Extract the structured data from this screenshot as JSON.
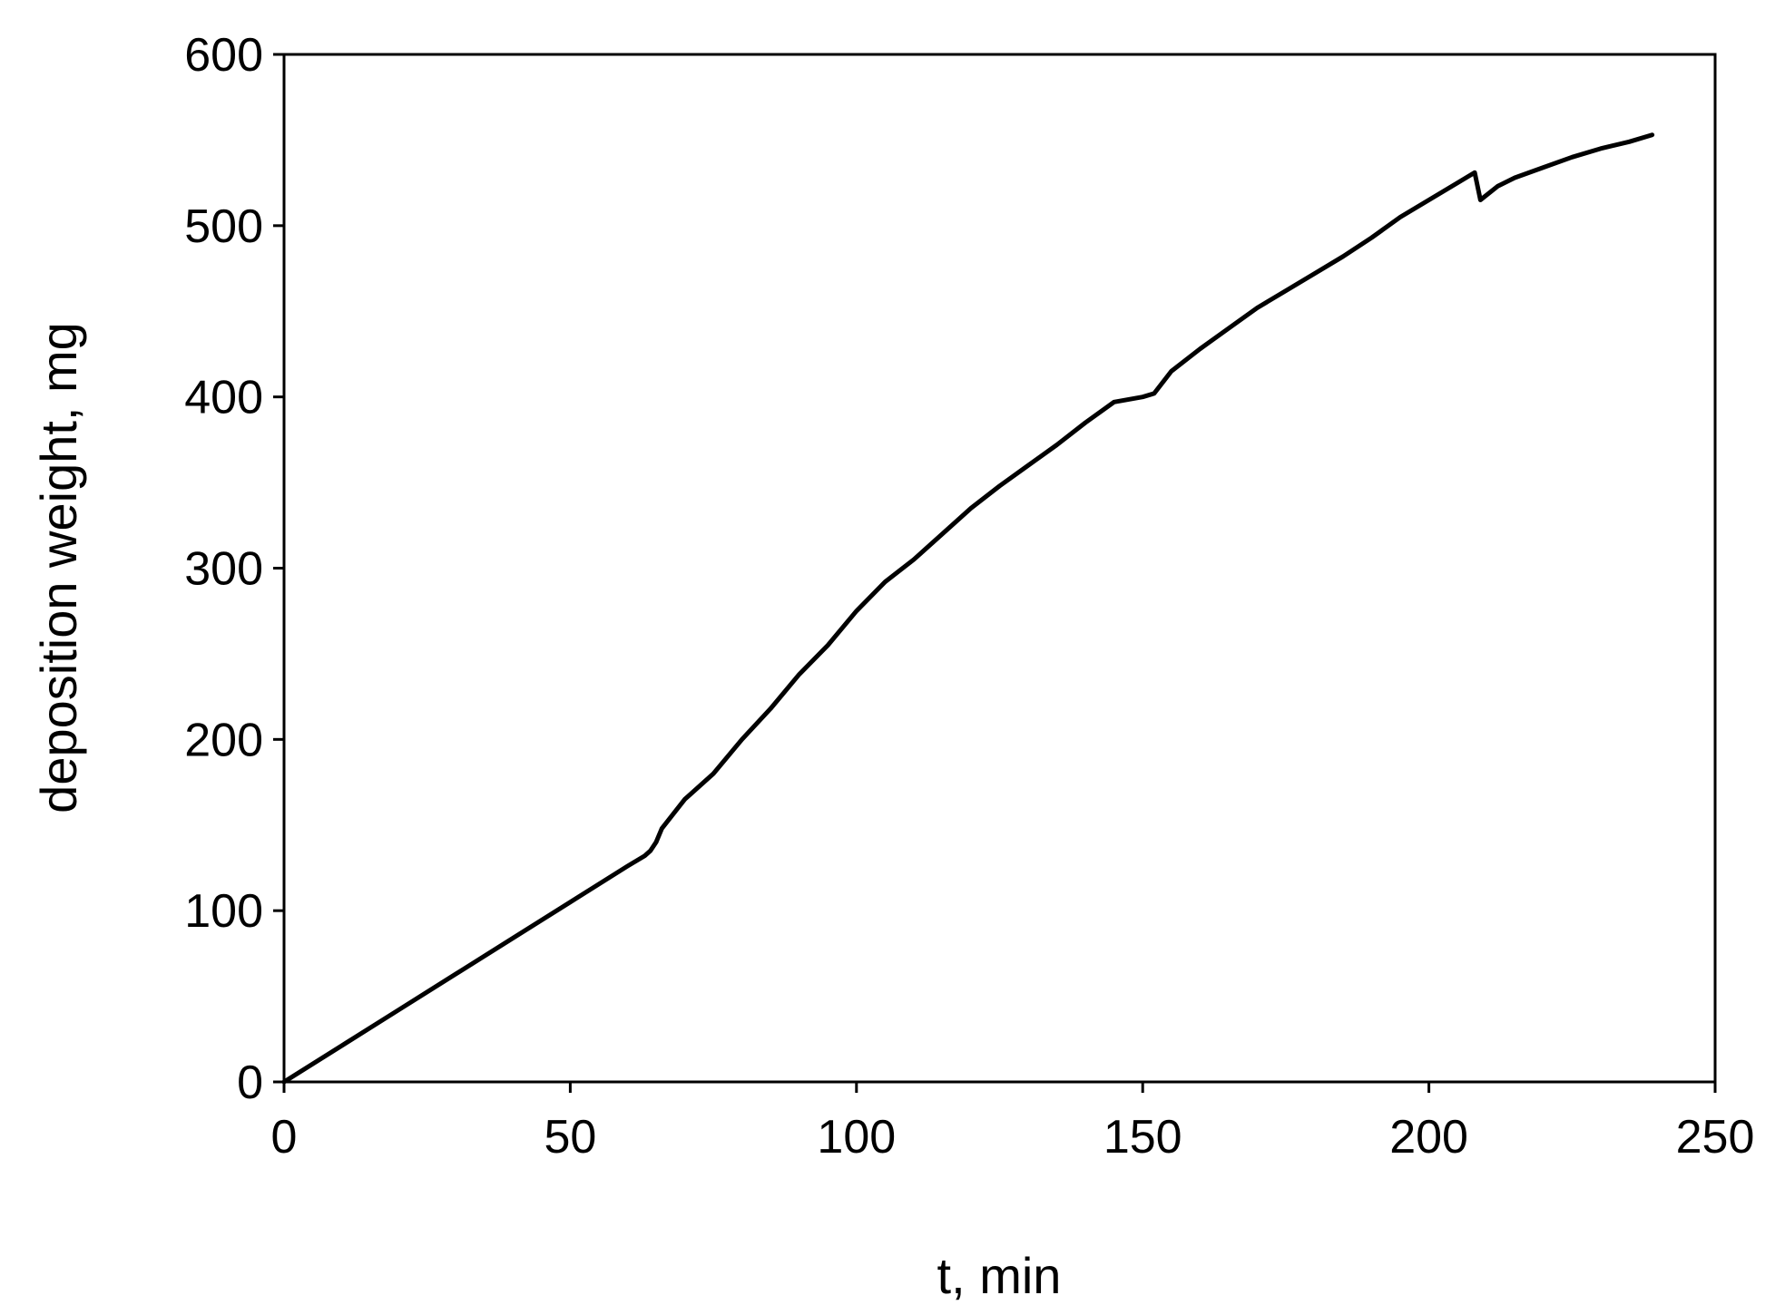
{
  "chart_data": {
    "type": "line",
    "title": "",
    "xlabel": "t, min",
    "ylabel": "deposition weight, mg",
    "xlim": [
      0,
      250
    ],
    "ylim": [
      0,
      600
    ],
    "xticks": [
      0,
      50,
      100,
      150,
      200,
      250
    ],
    "yticks": [
      0,
      100,
      200,
      300,
      400,
      500,
      600
    ],
    "grid": false,
    "legend": "none",
    "line_color": "#000000",
    "series": [
      {
        "x": [
          0,
          10,
          20,
          30,
          40,
          50,
          60,
          63,
          64,
          65,
          66,
          70,
          75,
          80,
          85,
          90,
          95,
          100,
          105,
          110,
          115,
          120,
          125,
          130,
          135,
          140,
          145,
          150,
          152,
          155,
          160,
          165,
          170,
          175,
          180,
          185,
          190,
          195,
          200,
          205,
          208,
          209,
          212,
          215,
          220,
          225,
          230,
          235,
          239
        ],
        "y": [
          0,
          21,
          42,
          63,
          84,
          105,
          126,
          132,
          135,
          140,
          148,
          165,
          180,
          200,
          218,
          238,
          255,
          275,
          292,
          305,
          320,
          335,
          348,
          360,
          372,
          385,
          397,
          400,
          402,
          415,
          428,
          440,
          452,
          462,
          472,
          482,
          493,
          505,
          515,
          525,
          531,
          515,
          523,
          528,
          534,
          540,
          545,
          549,
          553
        ]
      }
    ]
  }
}
